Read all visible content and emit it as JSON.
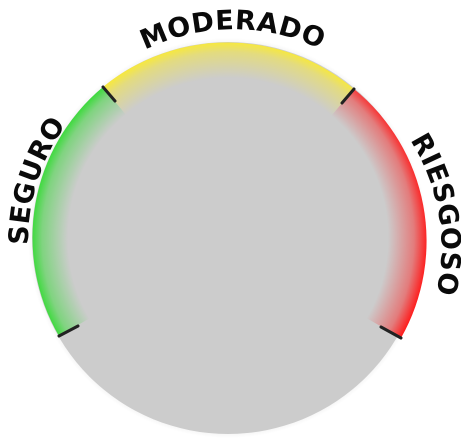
{
  "gauge": {
    "zones": [
      {
        "label": "SEGURO",
        "color": "#22dd22"
      },
      {
        "label": "MODERADO",
        "color": "#ffee22"
      },
      {
        "label": "RIESGOSO",
        "color": "#ff1a1a"
      }
    ],
    "dial_color": "#cccccc",
    "divider_color": "#222222"
  }
}
